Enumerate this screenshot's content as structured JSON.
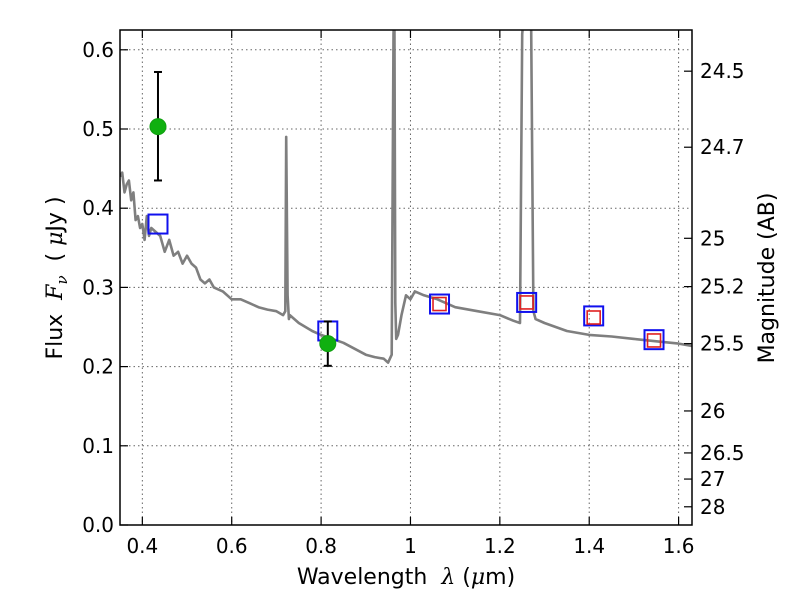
{
  "chart_data": {
    "type": "scatter",
    "xlabel": "Wavelength  λ (μm)",
    "ylabel": "Flux  Fν  ( μJy )",
    "ylabel_right": "Magnitude (AB)",
    "xlim": [
      0.35,
      1.63
    ],
    "ylim": [
      0.0,
      0.625
    ],
    "x_ticks": [
      0.4,
      0.6,
      0.8,
      1.0,
      1.2,
      1.4,
      1.6
    ],
    "x_tick_labels": [
      "0.4",
      "0.6",
      "0.8",
      "1",
      "1.2",
      "1.4",
      "1.6"
    ],
    "y_ticks": [
      0.0,
      0.1,
      0.2,
      0.3,
      0.4,
      0.5,
      0.6
    ],
    "y_tick_labels": [
      "0.0",
      "0.1",
      "0.2",
      "0.3",
      "0.4",
      "0.5",
      "0.6"
    ],
    "right_ticks": [
      {
        "label": "24.5",
        "flux": 0.573
      },
      {
        "label": "24.7",
        "flux": 0.477
      },
      {
        "label": "25",
        "flux": 0.362
      },
      {
        "label": "25.2",
        "flux": 0.301
      },
      {
        "label": "25.5",
        "flux": 0.229
      },
      {
        "label": "26",
        "flux": 0.144
      },
      {
        "label": "26.5",
        "flux": 0.091
      },
      {
        "label": "27",
        "flux": 0.058
      },
      {
        "label": "28",
        "flux": 0.023
      }
    ],
    "grid": true,
    "series": [
      {
        "kind": "line",
        "color": "#7f7f7f",
        "x": [
          0.35,
          0.355,
          0.36,
          0.365,
          0.37,
          0.375,
          0.38,
          0.385,
          0.39,
          0.395,
          0.4,
          0.405,
          0.41,
          0.415,
          0.42,
          0.43,
          0.44,
          0.45,
          0.46,
          0.47,
          0.48,
          0.49,
          0.5,
          0.51,
          0.52,
          0.53,
          0.54,
          0.55,
          0.56,
          0.58,
          0.6,
          0.62,
          0.64,
          0.66,
          0.68,
          0.7,
          0.715,
          0.72,
          0.722,
          0.725,
          0.728,
          0.73,
          0.75,
          0.78,
          0.8,
          0.85,
          0.9,
          0.92,
          0.94,
          0.95,
          0.958,
          0.962,
          0.964,
          0.966,
          0.968,
          0.972,
          0.98,
          0.99,
          1.0,
          1.01,
          1.03,
          1.06,
          1.1,
          1.15,
          1.2,
          1.23,
          1.245,
          1.25,
          1.255,
          1.26,
          1.265,
          1.27,
          1.275,
          1.28,
          1.3,
          1.35,
          1.4,
          1.45,
          1.5,
          1.55,
          1.6,
          1.63
        ],
        "y": [
          0.44,
          0.445,
          0.42,
          0.43,
          0.435,
          0.41,
          0.42,
          0.385,
          0.39,
          0.375,
          0.38,
          0.36,
          0.39,
          0.365,
          0.375,
          0.37,
          0.365,
          0.345,
          0.36,
          0.34,
          0.345,
          0.33,
          0.34,
          0.33,
          0.325,
          0.31,
          0.305,
          0.31,
          0.3,
          0.295,
          0.285,
          0.285,
          0.28,
          0.275,
          0.272,
          0.27,
          0.265,
          0.27,
          0.49,
          0.29,
          0.26,
          0.265,
          0.255,
          0.245,
          0.24,
          0.23,
          0.215,
          0.212,
          0.21,
          0.205,
          0.215,
          0.62,
          0.65,
          0.28,
          0.235,
          0.24,
          0.265,
          0.29,
          0.285,
          0.295,
          0.29,
          0.285,
          0.275,
          0.27,
          0.265,
          0.258,
          0.255,
          0.62,
          0.65,
          0.63,
          0.63,
          0.64,
          0.27,
          0.26,
          0.255,
          0.245,
          0.24,
          0.238,
          0.235,
          0.232,
          0.229,
          0.226
        ]
      },
      {
        "kind": "markers",
        "marker": "square",
        "color": "#1010ee",
        "x": [
          0.435,
          0.815,
          1.065,
          1.26,
          1.41,
          1.545
        ],
        "y": [
          0.38,
          0.245,
          0.279,
          0.281,
          0.264,
          0.234
        ]
      },
      {
        "kind": "markers",
        "marker": "square-small",
        "color": "#e02020",
        "x": [
          1.065,
          1.26,
          1.41,
          1.545
        ],
        "y": [
          0.279,
          0.281,
          0.262,
          0.233
        ]
      },
      {
        "kind": "points-with-error",
        "color": "#10b010",
        "x": [
          0.435,
          0.815
        ],
        "y": [
          0.503,
          0.229
        ],
        "yerr_low": [
          0.435,
          0.201
        ],
        "yerr_high": [
          0.572,
          0.257
        ]
      }
    ]
  }
}
